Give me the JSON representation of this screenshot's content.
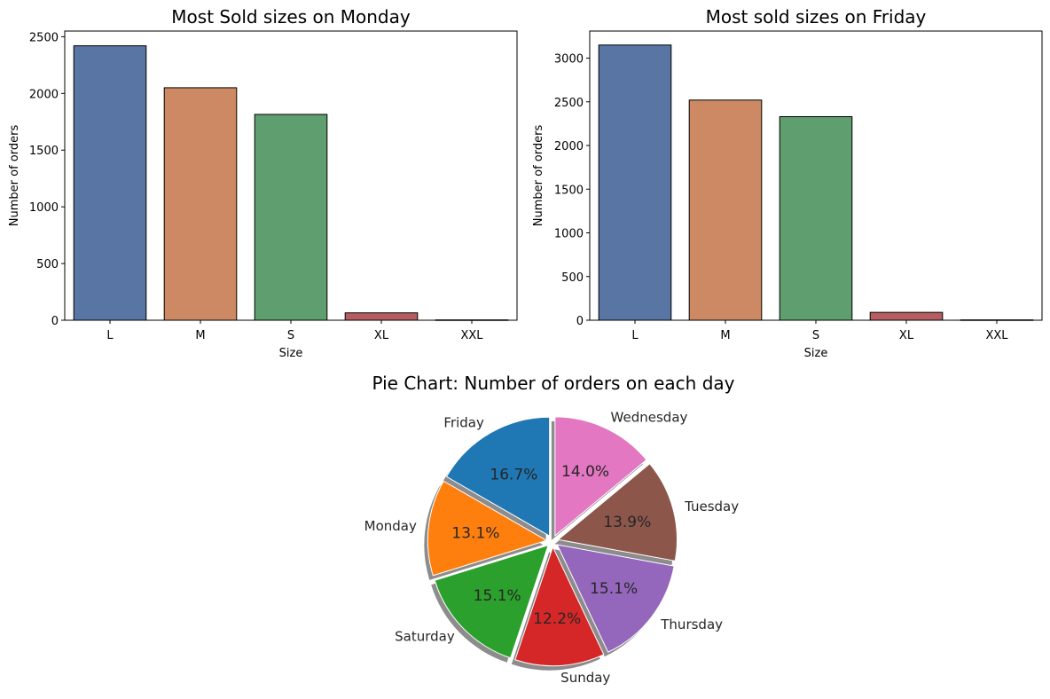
{
  "chart_data": [
    {
      "type": "bar",
      "title": "Most Sold sizes on Monday",
      "xlabel": "Size",
      "ylabel": "Number of orders",
      "categories": [
        "L",
        "M",
        "S",
        "XL",
        "XXL"
      ],
      "values": [
        2420,
        2050,
        1815,
        65,
        3
      ],
      "ylim": [
        0,
        2550
      ],
      "yticks": [
        0,
        500,
        1000,
        1500,
        2000,
        2500
      ],
      "colors": [
        "#5975a4",
        "#cc8963",
        "#5f9e6e",
        "#b55d60",
        "#857aab"
      ],
      "grid": false
    },
    {
      "type": "bar",
      "title": "Most sold sizes on Friday",
      "xlabel": "Size",
      "ylabel": "Number of orders",
      "categories": [
        "L",
        "M",
        "S",
        "XL",
        "XXL"
      ],
      "values": [
        3150,
        2520,
        2330,
        90,
        4
      ],
      "ylim": [
        0,
        3310
      ],
      "yticks": [
        0,
        500,
        1000,
        1500,
        2000,
        2500,
        3000
      ],
      "colors": [
        "#5975a4",
        "#cc8963",
        "#5f9e6e",
        "#b55d60",
        "#857aab"
      ],
      "grid": false
    },
    {
      "type": "pie",
      "title": "Pie Chart: Number of orders on each day",
      "labels": [
        "Friday",
        "Monday",
        "Saturday",
        "Sunday",
        "Thursday",
        "Tuesday",
        "Wednesday"
      ],
      "values": [
        16.7,
        13.1,
        15.1,
        12.2,
        15.1,
        13.9,
        14.0
      ],
      "pct_labels": [
        "16.7%",
        "13.1%",
        "15.1%",
        "12.2%",
        "15.1%",
        "13.9%",
        "14.0%"
      ],
      "colors": [
        "#1f77b4",
        "#ff7f0e",
        "#2ca02c",
        "#d62728",
        "#9467bd",
        "#8c564b",
        "#e377c2"
      ],
      "start_angle": 90,
      "counterclockwise": true,
      "shadow": true,
      "exploded": true
    }
  ]
}
